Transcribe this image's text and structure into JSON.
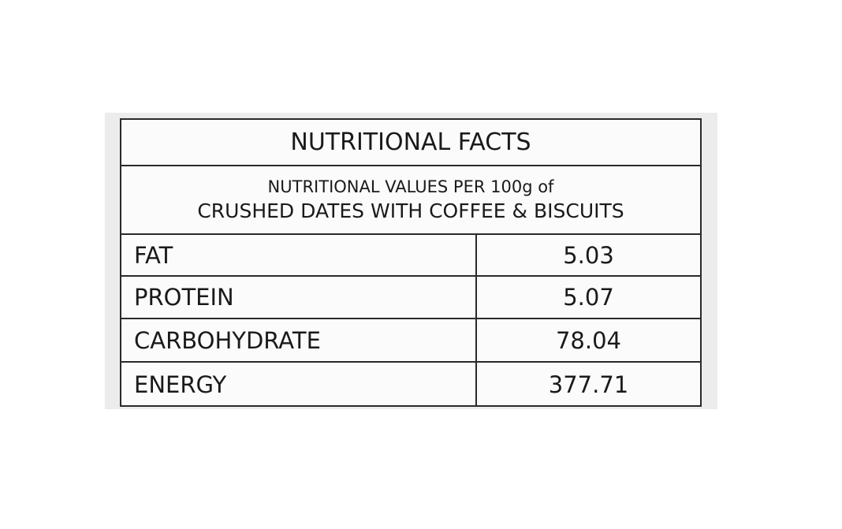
{
  "table": {
    "title": "NUTRITIONAL FACTS",
    "subtitle": [
      "NUTRITIONAL VALUES PER 100g of",
      "CRUSHED DATES WITH COFFEE & BISCUITS"
    ],
    "rows": [
      [
        "FAT",
        "5.03"
      ],
      [
        "PROTEIN",
        "5.07"
      ],
      [
        "CARBOHYDRATE",
        "78.04"
      ],
      [
        "ENERGY",
        "377.71"
      ]
    ]
  }
}
